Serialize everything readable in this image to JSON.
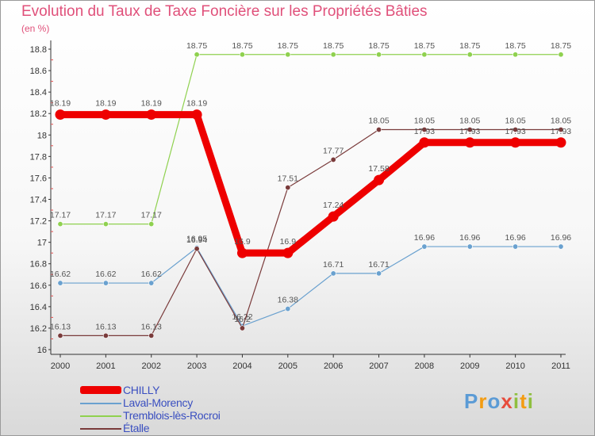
{
  "chart_data": {
    "type": "line",
    "title": "Evolution du Taux de Taxe Foncière sur les Propriétés Bâties",
    "ylabel": "(en %)",
    "xlabel": "",
    "x": [
      "2000",
      "2001",
      "2002",
      "2003",
      "2004",
      "2005",
      "2006",
      "2007",
      "2008",
      "2009",
      "2010",
      "2011"
    ],
    "ylim": [
      16,
      18.8
    ],
    "yticks": [
      "16",
      "16.2",
      "16.4",
      "16.6",
      "16.8",
      "17",
      "17.2",
      "17.4",
      "17.6",
      "17.8",
      "18",
      "18.2",
      "18.4",
      "18.6",
      "18.8"
    ],
    "grid": false,
    "legend_position": "bottom-left",
    "series": [
      {
        "name": "Tremblois-lès-Rocroi",
        "color": "#8fd14f",
        "values": [
          17.17,
          17.17,
          17.17,
          18.75,
          18.75,
          18.75,
          18.75,
          18.75,
          18.75,
          18.75,
          18.75,
          18.75
        ],
        "labels": [
          "17.17",
          "17.17",
          "17.17",
          "18.75",
          "18.75",
          "18.75",
          "18.75",
          "18.75",
          "18.75",
          "18.75",
          "18.75",
          "18.75"
        ]
      },
      {
        "name": "Laval-Morency",
        "color": "#6aa1cf",
        "values": [
          16.62,
          16.62,
          16.62,
          16.95,
          16.22,
          16.38,
          16.71,
          16.71,
          16.96,
          16.96,
          16.96,
          16.96
        ],
        "labels": [
          "16.62",
          "16.62",
          "16.62",
          "16.95",
          "16.22",
          "16.38",
          "16.71",
          "16.71",
          "16.96",
          "16.96",
          "16.96",
          "16.96"
        ]
      },
      {
        "name": "Étalle",
        "color": "#7a3b3b",
        "values": [
          16.13,
          16.13,
          16.13,
          16.94,
          16.2,
          17.51,
          17.77,
          18.05,
          18.05,
          18.05,
          18.05,
          18.05
        ],
        "labels": [
          "16.13",
          "16.13",
          "16.13",
          "16.94",
          "16.2",
          "17.51",
          "17.77",
          "18.05",
          "18.05",
          "18.05",
          "18.05",
          "18.05"
        ]
      },
      {
        "name": "CHILLY",
        "color": "#ee0000",
        "values": [
          18.19,
          18.19,
          18.19,
          18.19,
          16.9,
          16.9,
          17.24,
          17.58,
          17.93,
          17.93,
          17.93,
          17.93
        ],
        "labels": [
          "18.19",
          "18.19",
          "18.19",
          "18.19",
          "16.9",
          "16.9",
          "17.24",
          "17.58",
          "17.93",
          "17.93",
          "17.93",
          "17.93"
        ]
      }
    ]
  },
  "legend": [
    {
      "label": "CHILLY",
      "color": "#ee0000"
    },
    {
      "label": "Laval-Morency",
      "color": "#6aa1cf"
    },
    {
      "label": "Tremblois-lès-Rocroi",
      "color": "#8fd14f"
    },
    {
      "label": "Étalle",
      "color": "#7a3b3b"
    }
  ],
  "brand": {
    "letters": [
      "P",
      "r",
      "o",
      "x",
      "i",
      "t",
      "i"
    ],
    "colors": [
      "#5b9bd5",
      "#f39c12",
      "#5b9bd5",
      "#e74c3c",
      "#8fbf3f",
      "#f39c12",
      "#8fbf3f"
    ]
  }
}
